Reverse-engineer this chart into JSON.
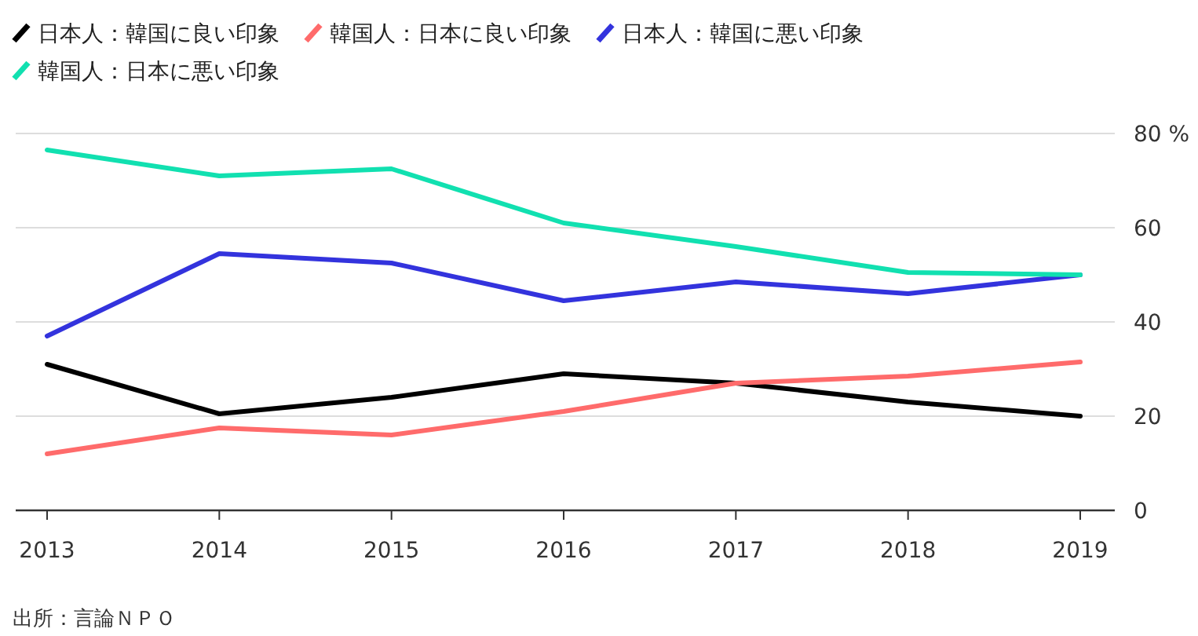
{
  "chart_data": {
    "type": "line",
    "categories": [
      "2013",
      "2014",
      "2015",
      "2016",
      "2017",
      "2018",
      "2019"
    ],
    "series": [
      {
        "name": "日本人：韓国に良い印象",
        "color": "#000000",
        "values": [
          31,
          20.5,
          24,
          29,
          27,
          23,
          20
        ]
      },
      {
        "name": "韓国人：日本に良い印象",
        "color": "#ff6b6b",
        "values": [
          12,
          17.5,
          16,
          21,
          27,
          28.5,
          31.5
        ]
      },
      {
        "name": "日本人：韓国に悪い印象",
        "color": "#3333dd",
        "values": [
          37,
          54.5,
          52.5,
          44.5,
          48.5,
          46,
          50
        ]
      },
      {
        "name": "韓国人：日本に悪い印象",
        "color": "#11e0b0",
        "values": [
          76.5,
          71,
          72.5,
          61,
          56,
          50.5,
          50
        ]
      }
    ],
    "ylim": [
      0,
      80
    ],
    "yticks": [
      0,
      20,
      40,
      60,
      {
        "value": 80,
        "label": "80 %"
      }
    ],
    "grid": "y",
    "legend": "top left",
    "marker": "none",
    "line_style": "solid",
    "annotations": [
      "出所：言論ＮＰＯ"
    ]
  }
}
